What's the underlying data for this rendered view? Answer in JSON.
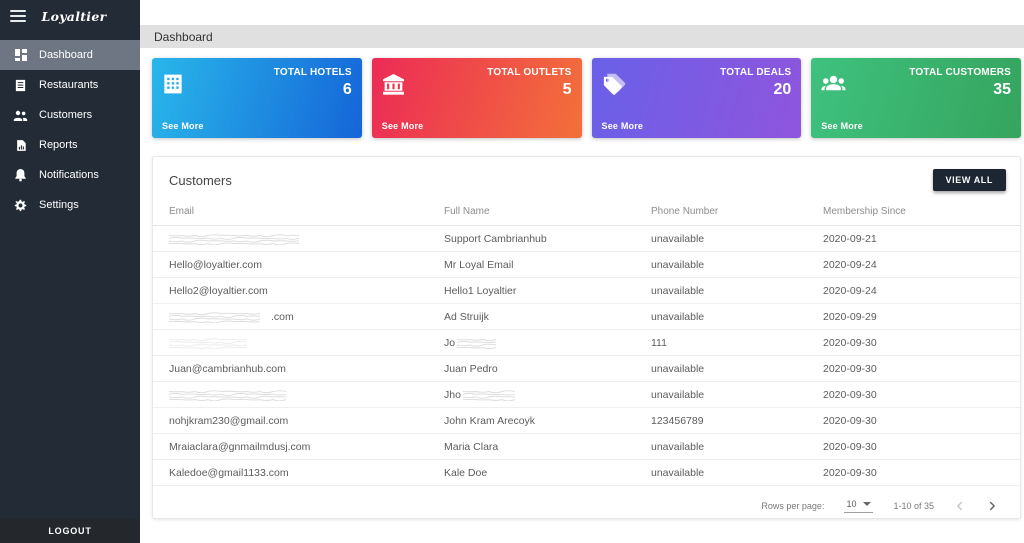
{
  "sidebar": {
    "logo": "Loyaltier",
    "items": [
      {
        "label": "Dashboard",
        "icon": "dashboard-icon",
        "active": true
      },
      {
        "label": "Restaurants",
        "icon": "restaurant-menu-icon",
        "active": false
      },
      {
        "label": "Customers",
        "icon": "customers-icon",
        "active": false
      },
      {
        "label": "Reports",
        "icon": "report-icon",
        "active": false
      },
      {
        "label": "Notifications",
        "icon": "bell-icon",
        "active": false
      },
      {
        "label": "Settings",
        "icon": "gear-icon",
        "active": false
      }
    ],
    "logout_label": "LOGOUT"
  },
  "header": {
    "title": "Dashboard"
  },
  "colors": {
    "sidebar_bg": "#222b36",
    "sidebar_active": "#6e7683",
    "topbar_bg": "#e0e0e0",
    "view_all_bg": "#1c2733"
  },
  "cards": [
    {
      "label": "TOTAL HOTELS",
      "value": "6",
      "see_more": "See More",
      "icon": "hotel-building-icon",
      "gradient": [
        "#29b7ea",
        "#1565d8"
      ]
    },
    {
      "label": "TOTAL OUTLETS",
      "value": "5",
      "see_more": "See More",
      "icon": "bank-icon",
      "gradient": [
        "#ec2b56",
        "#f3703a"
      ]
    },
    {
      "label": "TOTAL DEALS",
      "value": "20",
      "see_more": "See More",
      "icon": "tags-icon",
      "gradient": [
        "#6a60e8",
        "#8f55dd"
      ]
    },
    {
      "label": "TOTAL CUSTOMERS",
      "value": "35",
      "see_more": "See More",
      "icon": "people-group-icon",
      "gradient": [
        "#3ec27e",
        "#35a45e"
      ]
    }
  ],
  "table": {
    "title": "Customers",
    "view_all_label": "VIEW ALL",
    "columns": [
      "Email",
      "Full Name",
      "Phone Number",
      "Membership Since"
    ],
    "rows": [
      {
        "email": {
          "prefix": "",
          "redacted": true,
          "scribble_w": 135
        },
        "name": {
          "prefix": "Support Cambrianhub"
        },
        "phone": "unavailable",
        "since": "2020-09-21"
      },
      {
        "email": {
          "prefix": "Hello@loyaltier.com"
        },
        "name": {
          "prefix": "Mr Loyal Email"
        },
        "phone": "unavailable",
        "since": "2020-09-24"
      },
      {
        "email": {
          "prefix": "Hello2@loyaltier.com"
        },
        "name": {
          "prefix": "Hello1 Loyaltier"
        },
        "phone": "unavailable",
        "since": "2020-09-24"
      },
      {
        "email": {
          "prefix": "",
          "redacted": true,
          "scribble_w": 100,
          "suffix": ".com"
        },
        "name": {
          "prefix": "Ad Struijk"
        },
        "phone": "unavailable",
        "since": "2020-09-29"
      },
      {
        "email": {
          "prefix": "",
          "redacted": true,
          "scribble_w": 90,
          "faint": true
        },
        "name": {
          "prefix": "Jo",
          "redacted": true,
          "scribble_w": 50
        },
        "phone": "111",
        "since": "2020-09-30"
      },
      {
        "email": {
          "prefix": "Juan@cambrianhub.com"
        },
        "name": {
          "prefix": "Juan Pedro"
        },
        "phone": "unavailable",
        "since": "2020-09-30"
      },
      {
        "email": {
          "prefix": "",
          "redacted": true,
          "scribble_w": 120
        },
        "name": {
          "prefix": "Jho",
          "redacted": true,
          "scribble_w": 55
        },
        "phone": "unavailable",
        "since": "2020-09-30"
      },
      {
        "email": {
          "prefix": "nohjkram230@gmail.com"
        },
        "name": {
          "prefix": "John Kram Arecoyk"
        },
        "phone": "123456789",
        "since": "2020-09-30"
      },
      {
        "email": {
          "prefix": "Mraiaclara@gnmailmdusj.com"
        },
        "name": {
          "prefix": "Maria Clara"
        },
        "phone": "unavailable",
        "since": "2020-09-30"
      },
      {
        "email": {
          "prefix": "Kaledoe@gmail1133.com"
        },
        "name": {
          "prefix": "Kale Doe"
        },
        "phone": "unavailable",
        "since": "2020-09-30"
      }
    ],
    "pagination": {
      "rows_per_page_label": "Rows per page:",
      "rows_per_page": "10",
      "range": "1-10 of 35"
    }
  }
}
